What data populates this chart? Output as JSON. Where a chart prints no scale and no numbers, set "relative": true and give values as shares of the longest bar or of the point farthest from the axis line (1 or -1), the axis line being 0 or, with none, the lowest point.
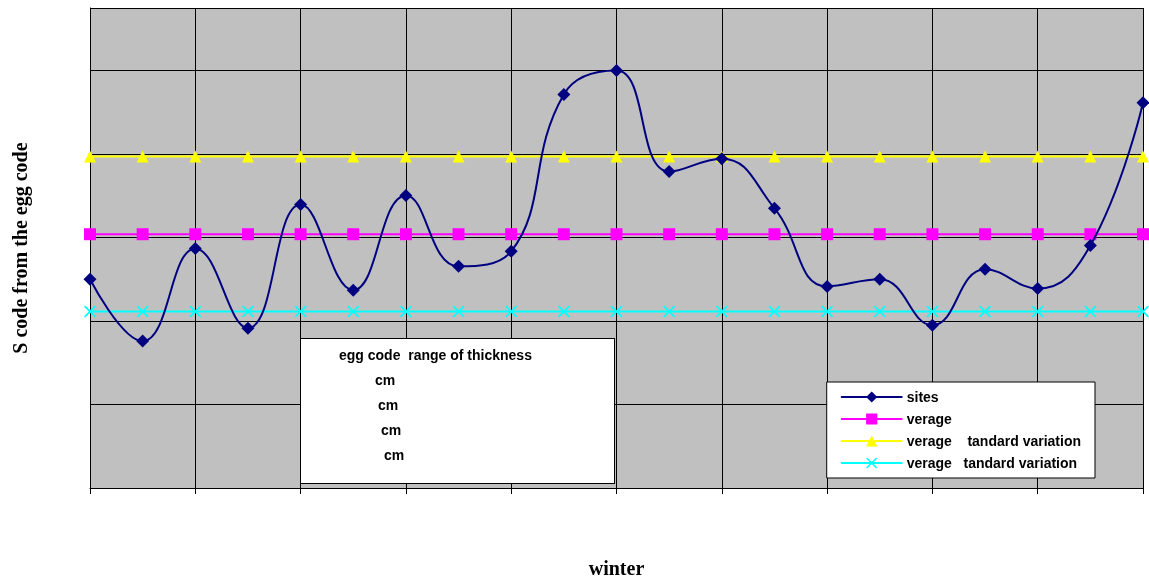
{
  "chart_data": {
    "type": "line",
    "relative": true,
    "xlabel": "winter",
    "ylabel": "S code from the egg code",
    "categories": [
      null,
      null,
      null,
      null,
      null,
      null,
      null,
      null,
      null,
      null,
      null,
      null,
      null,
      null,
      null,
      null,
      null,
      null,
      null,
      null,
      null
    ],
    "series": [
      {
        "name": "sites",
        "color": "#000080",
        "marker": "diamond",
        "values": [
          0.5,
          0.352,
          0.574,
          0.383,
          0.679,
          0.474,
          0.701,
          0.531,
          0.567,
          0.943,
          1,
          0.758,
          0.789,
          0.67,
          0.483,
          0.5,
          0.39,
          0.524,
          0.478,
          0.581,
          0.923
        ]
      },
      {
        "name": "verage",
        "color": "#ff00ff",
        "marker": "square",
        "values": [
          0.608,
          0.608,
          0.608,
          0.608,
          0.608,
          0.608,
          0.608,
          0.608,
          0.608,
          0.608,
          0.608,
          0.608,
          0.608,
          0.608,
          0.608,
          0.608,
          0.608,
          0.608,
          0.608,
          0.608,
          0.608
        ]
      },
      {
        "name": "verage    tandard variation",
        "color": "#ffff00",
        "marker": "triangle",
        "values": [
          0.794,
          0.794,
          0.794,
          0.794,
          0.794,
          0.794,
          0.794,
          0.794,
          0.794,
          0.794,
          0.794,
          0.794,
          0.794,
          0.794,
          0.794,
          0.794,
          0.794,
          0.794,
          0.794,
          0.794,
          0.794
        ]
      },
      {
        "name": "verage   tandard variation",
        "color": "#00ffff",
        "marker": "cross",
        "values": [
          0.423,
          0.423,
          0.423,
          0.423,
          0.423,
          0.423,
          0.423,
          0.423,
          0.423,
          0.423,
          0.423,
          0.423,
          0.423,
          0.423,
          0.423,
          0.423,
          0.423,
          0.423,
          0.423,
          0.423,
          0.423
        ]
      }
    ],
    "annotations": [
      "egg code  range of thickness",
      "cm",
      "cm",
      "cm",
      "cm"
    ],
    "grid": true,
    "legend": "bottom right",
    "line_style": "solid"
  }
}
